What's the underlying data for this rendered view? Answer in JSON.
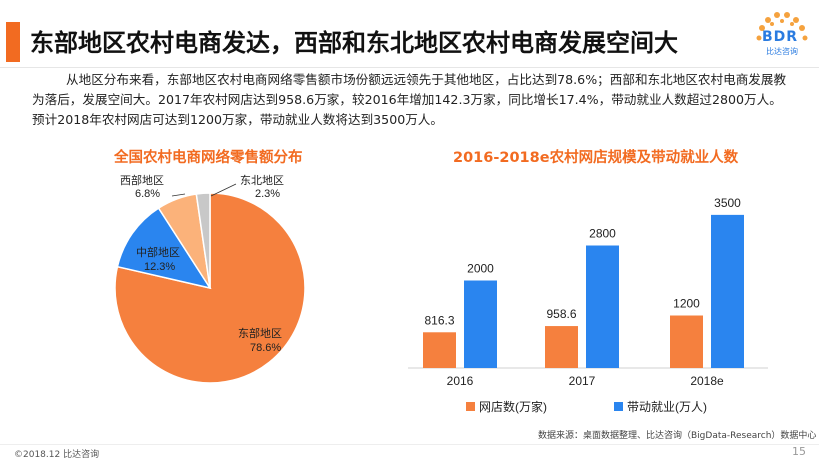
{
  "header": {
    "title": "东部地区农村电商发达，西部和东北地区农村电商发展空间大",
    "logo_text": "BDR",
    "logo_sub": "比达咨询"
  },
  "intro": "从地区分布来看，东部地区农村电商网络零售额市场份额远远领先于其他地区，占比达到78.6%；西部和东北地区农村电商发展教为落后，发展空间大。2017年农村网店达到958.6万家，较2016年增加142.3万家，同比增长17.4%，带动就业人数超过2800万人。预计2018年农村网店可达到1200万家，带动就业人数将达到3500万人。",
  "colors": {
    "accent": "#f26b21",
    "pie_east": "#f5803e",
    "pie_central": "#2a85ef",
    "pie_west": "#fbb27a",
    "pie_northeast": "#c8c8c8",
    "bar_stores": "#f5803e",
    "bar_jobs": "#2a85ef"
  },
  "chart_data": [
    {
      "type": "pie",
      "title": "全国农村电商网络零售额分布",
      "slices": [
        {
          "name": "东部地区",
          "value": 78.6,
          "label": "78.6%"
        },
        {
          "name": "中部地区",
          "value": 12.3,
          "label": "12.3%"
        },
        {
          "name": "西部地区",
          "value": 6.8,
          "label": "6.8%"
        },
        {
          "name": "东北地区",
          "value": 2.3,
          "label": "2.3%"
        }
      ]
    },
    {
      "type": "bar",
      "title": "2016-2018e农村网店规模及带动就业人数",
      "categories": [
        "2016",
        "2017",
        "2018e"
      ],
      "series": [
        {
          "name": "网店数(万家)",
          "values": [
            816.3,
            958.6,
            1200
          ],
          "labels": [
            "816.3",
            "958.6",
            "1200"
          ]
        },
        {
          "name": "带动就业(万人)",
          "values": [
            2000,
            2800,
            3500
          ],
          "labels": [
            "2000",
            "2800",
            "3500"
          ]
        }
      ],
      "legend": "bottom"
    }
  ],
  "footer": {
    "source": "数据来源：桌面数据整理、比达咨询（BigData-Research）数据中心",
    "copyright": "©2018.12 比达咨询",
    "page": "15"
  }
}
